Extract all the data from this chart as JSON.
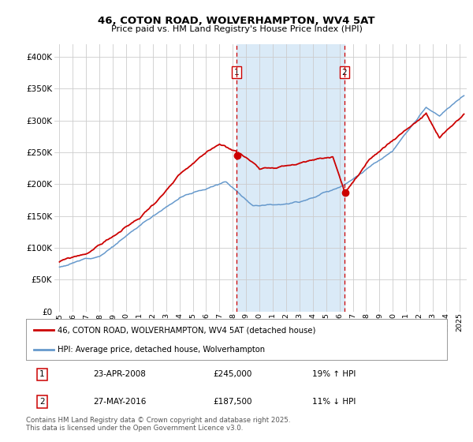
{
  "title": "46, COTON ROAD, WOLVERHAMPTON, WV4 5AT",
  "subtitle": "Price paid vs. HM Land Registry's House Price Index (HPI)",
  "legend_line1": "46, COTON ROAD, WOLVERHAMPTON, WV4 5AT (detached house)",
  "legend_line2": "HPI: Average price, detached house, Wolverhampton",
  "sale1_date": "23-APR-2008",
  "sale1_price": 245000,
  "sale1_pct": "19% ↑ HPI",
  "sale2_date": "27-MAY-2016",
  "sale2_price": 187500,
  "sale2_pct": "11% ↓ HPI",
  "footnote": "Contains HM Land Registry data © Crown copyright and database right 2025.\nThis data is licensed under the Open Government Licence v3.0.",
  "red_line_color": "#cc0000",
  "blue_line_color": "#6699cc",
  "shade_color": "#daeaf7",
  "grid_color": "#cccccc",
  "bg_color": "#ffffff",
  "dashed_color": "#cc0000",
  "ylim": [
    0,
    420000
  ],
  "yticks": [
    0,
    50000,
    100000,
    150000,
    200000,
    250000,
    300000,
    350000,
    400000
  ],
  "year_start": 1995,
  "year_end": 2025,
  "sale1_t": 2008.292,
  "sale2_t": 2016.375
}
